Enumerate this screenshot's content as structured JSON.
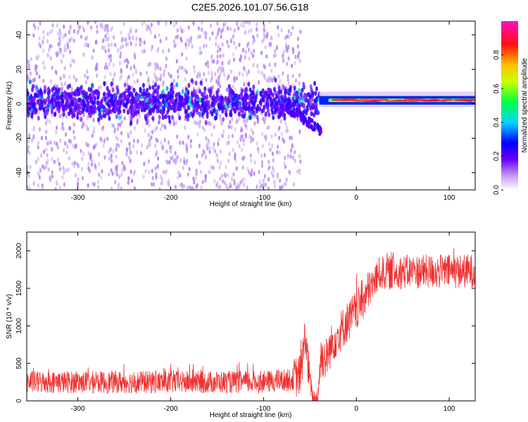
{
  "title": "C2E5.2026.101.07.56.G18",
  "spectrogram": {
    "type": "heatmap",
    "xlabel": "Height of straight line (km)",
    "ylabel": "Frequency (Hz)",
    "xlim": [
      -355,
      128
    ],
    "ylim": [
      -50,
      48
    ],
    "xticks": [
      -300,
      -200,
      -100,
      0,
      100
    ],
    "yticks": [
      -40,
      -20,
      0,
      20,
      40
    ],
    "colorbar_label": "Normalized spectral amplitude",
    "colorbar_range": [
      0.0,
      1.0
    ],
    "colorbar_ticks": [
      0.0,
      0.2,
      0.4,
      0.6,
      0.8
    ],
    "features": [
      {
        "description": "broadband low-amplitude scatter",
        "x_range": [
          -355,
          -60
        ],
        "freq_range": [
          -50,
          48
        ],
        "amplitude": 0.05
      },
      {
        "description": "central energy band",
        "x_range": [
          -355,
          -40
        ],
        "freq_range": [
          -8,
          10
        ],
        "amplitude": 0.15
      },
      {
        "description": "narrow carrier line",
        "x_range": [
          -40,
          128
        ],
        "freq_center": 2,
        "freq_halfwidth": 1.5,
        "amplitude": 0.85
      }
    ]
  },
  "snr": {
    "type": "line",
    "xlabel": "Height of straight line (km)",
    "ylabel": "SNR (10 * v/v)",
    "xlim": [
      -355,
      128
    ],
    "ylim": [
      0,
      2250
    ],
    "xticks": [
      -300,
      -200,
      -100,
      0,
      100
    ],
    "yticks": [
      0,
      500,
      1000,
      1500,
      2000
    ],
    "color": "#f03030",
    "profile": [
      {
        "x": -355,
        "y": 250
      },
      {
        "x": -100,
        "y": 250
      },
      {
        "x": -70,
        "y": 280
      },
      {
        "x": -60,
        "y": 350
      },
      {
        "x": -55,
        "y": 900
      },
      {
        "x": -52,
        "y": 450
      },
      {
        "x": -47,
        "y": 20
      },
      {
        "x": -42,
        "y": 20
      },
      {
        "x": -38,
        "y": 600
      },
      {
        "x": -33,
        "y": 550
      },
      {
        "x": -25,
        "y": 800
      },
      {
        "x": -10,
        "y": 1050
      },
      {
        "x": 0,
        "y": 1200
      },
      {
        "x": 10,
        "y": 1400
      },
      {
        "x": 25,
        "y": 1700
      },
      {
        "x": 50,
        "y": 1720
      },
      {
        "x": 128,
        "y": 1730
      }
    ]
  }
}
